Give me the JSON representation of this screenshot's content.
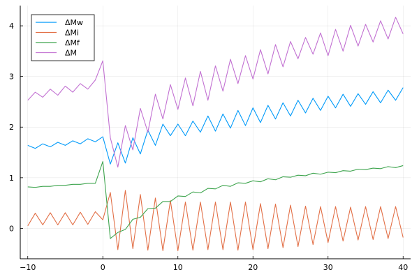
{
  "chart_data": {
    "type": "line",
    "title": "",
    "xlabel": "",
    "ylabel": "",
    "xlim": [
      -11,
      41
    ],
    "ylim": [
      -0.6,
      4.4
    ],
    "x_ticks": [
      -10,
      0,
      10,
      20,
      30,
      40
    ],
    "y_ticks": [
      0,
      1,
      2,
      3,
      4
    ],
    "x_tick_labels": [
      "−10",
      "0",
      "10",
      "20",
      "30",
      "40"
    ],
    "y_tick_labels": [
      "0",
      "1",
      "2",
      "3",
      "4"
    ],
    "grid": true,
    "legend_position": "top-left",
    "x": [
      -10,
      -9,
      -8,
      -7,
      -6,
      -5,
      -4,
      -3,
      -2,
      -1,
      0,
      1,
      2,
      3,
      4,
      5,
      6,
      7,
      8,
      9,
      10,
      11,
      12,
      13,
      14,
      15,
      16,
      17,
      18,
      19,
      20,
      21,
      22,
      23,
      24,
      25,
      26,
      27,
      28,
      29,
      30,
      31,
      32,
      33,
      34,
      35,
      36,
      37,
      38,
      39,
      40
    ],
    "series": [
      {
        "name": "ΔMw",
        "color": "#009AF9",
        "values": [
          1.64,
          1.58,
          1.67,
          1.61,
          1.7,
          1.64,
          1.73,
          1.67,
          1.77,
          1.71,
          1.81,
          1.27,
          1.69,
          1.29,
          1.79,
          1.47,
          1.94,
          1.64,
          2.06,
          1.83,
          2.06,
          1.83,
          2.12,
          1.9,
          2.22,
          1.92,
          2.26,
          1.98,
          2.33,
          2.03,
          2.38,
          2.09,
          2.43,
          2.16,
          2.48,
          2.22,
          2.53,
          2.28,
          2.57,
          2.33,
          2.61,
          2.38,
          2.65,
          2.41,
          2.66,
          2.45,
          2.7,
          2.48,
          2.73,
          2.53,
          2.78
        ]
      },
      {
        "name": "ΔMi",
        "color": "#E26F46",
        "values": [
          0.05,
          0.3,
          0.07,
          0.31,
          0.07,
          0.31,
          0.07,
          0.32,
          0.08,
          0.33,
          0.17,
          0.71,
          -0.42,
          0.75,
          -0.4,
          0.67,
          -0.43,
          0.6,
          -0.44,
          0.55,
          -0.44,
          0.52,
          -0.43,
          0.52,
          -0.42,
          0.52,
          -0.42,
          0.52,
          -0.43,
          0.52,
          -0.42,
          0.49,
          -0.4,
          0.48,
          -0.38,
          0.46,
          -0.36,
          0.44,
          -0.32,
          0.43,
          -0.28,
          0.43,
          -0.25,
          0.42,
          -0.23,
          0.43,
          -0.22,
          0.43,
          -0.2,
          0.43,
          -0.18
        ]
      },
      {
        "name": "ΔMf",
        "color": "#3DA44D",
        "values": [
          0.82,
          0.81,
          0.83,
          0.83,
          0.85,
          0.85,
          0.87,
          0.87,
          0.89,
          0.89,
          1.32,
          -0.2,
          -0.08,
          -0.02,
          0.18,
          0.22,
          0.39,
          0.4,
          0.53,
          0.53,
          0.64,
          0.63,
          0.72,
          0.7,
          0.79,
          0.78,
          0.85,
          0.83,
          0.9,
          0.89,
          0.94,
          0.92,
          0.98,
          0.96,
          1.02,
          1.01,
          1.05,
          1.04,
          1.09,
          1.07,
          1.11,
          1.1,
          1.14,
          1.13,
          1.17,
          1.16,
          1.19,
          1.18,
          1.22,
          1.2,
          1.24
        ]
      },
      {
        "name": "ΔM",
        "color": "#C271D2",
        "values": [
          2.53,
          2.69,
          2.59,
          2.75,
          2.63,
          2.81,
          2.69,
          2.86,
          2.75,
          2.93,
          3.31,
          1.79,
          1.21,
          2.03,
          1.55,
          2.37,
          1.9,
          2.65,
          2.16,
          2.84,
          2.35,
          2.97,
          2.42,
          3.1,
          2.53,
          3.21,
          2.71,
          3.34,
          2.86,
          3.41,
          2.95,
          3.53,
          3.05,
          3.63,
          3.19,
          3.69,
          3.35,
          3.77,
          3.44,
          3.86,
          3.41,
          3.93,
          3.5,
          4.01,
          3.6,
          4.03,
          3.68,
          4.1,
          3.74,
          4.17,
          3.84
        ]
      }
    ]
  }
}
